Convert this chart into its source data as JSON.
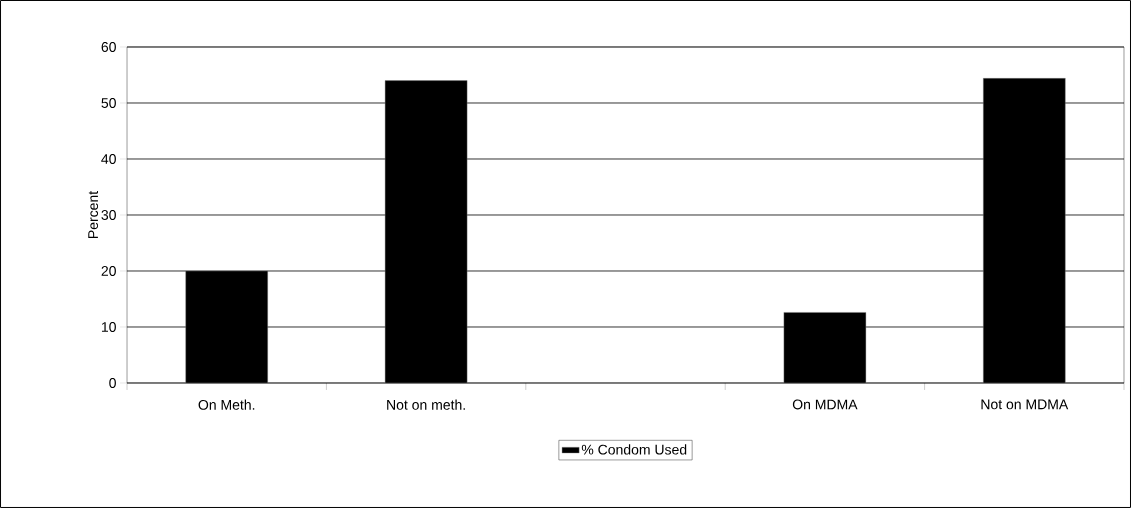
{
  "chart_data": {
    "type": "bar",
    "ylabel": "Percent",
    "categories": [
      "On Meth.",
      "Not on meth.",
      null,
      "On MDMA",
      "Not on MDMA"
    ],
    "series": [
      {
        "name": "% Condom Used",
        "color": "#000000",
        "values": [
          20,
          54,
          null,
          12.6,
          54.4
        ]
      }
    ],
    "ylim": [
      0,
      60
    ],
    "yticks": [
      0,
      10,
      20,
      30,
      40,
      50,
      60
    ],
    "grid": "y",
    "legend": "bottom"
  }
}
